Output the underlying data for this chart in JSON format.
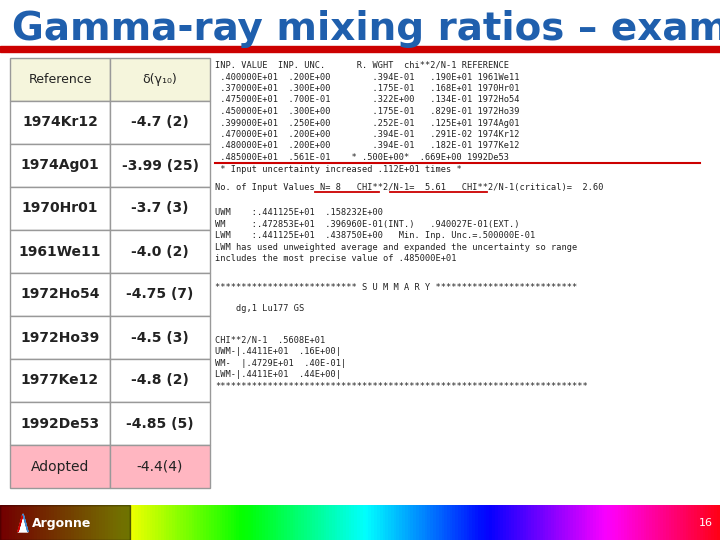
{
  "title": "Gamma-ray mixing ratios – example",
  "title_color": "#1F5FAD",
  "title_fontsize": 28,
  "background_color": "#FFFFFF",
  "red_bar_color": "#CC0000",
  "table_header_bg": "#F5F5DC",
  "table_adopted_bg": "#FFB6C1",
  "table_rows": [
    [
      "Reference",
      "δ(γ₁₀)"
    ],
    [
      "1974Kr12",
      "-4.7 (2)"
    ],
    [
      "1974Ag01",
      "-3.99 (25)"
    ],
    [
      "1970Hr01",
      "-3.7 (3)"
    ],
    [
      "1961We11",
      "-4.0 (2)"
    ],
    [
      "1972Ho54",
      "-4.75 (7)"
    ],
    [
      "1972Ho39",
      "-4.5 (3)"
    ],
    [
      "1977Ke12",
      "-4.8 (2)"
    ],
    [
      "1992De53",
      "-4.85 (5)"
    ],
    [
      "Adopted",
      "-4.4(4)"
    ]
  ],
  "computer_text_lines": [
    "INP. VALUE  INP. UNC.      R. WGHT  chi**2/N-1 REFERENCE",
    " .400000E+01  .200E+00        .394E-01   .190E+01 1961We11",
    " .370000E+01  .300E+00        .175E-01   .168E+01 1970Hr01",
    " .475000E+01  .700E-01        .322E+00   .134E-01 1972Ho54",
    " .450000E+01  .300E+00        .175E-01   .829E-01 1972Ho39",
    " .399000E+01  .250E+00        .252E-01   .125E+01 1974Ag01",
    " .470000E+01  .200E+00        .394E-01   .291E-02 1974Kr12",
    " .480000E+01  .200E+00        .394E-01   .182E-01 1977Ke12",
    " .485000E+01  .561E-01    * .500E+00*  .669E+00 1992De53"
  ],
  "highlight_line_index": 8,
  "note_line": " * Input uncertainty increased .112E+01 times *",
  "chi_line": "No. of Input Values N= 8   CHI**2/N-1=  5.61   CHI**2/N-1(critical)=  2.60",
  "stats_lines": [
    "UWM    :.441125E+01  .158232E+00",
    "WM     :.472853E+01  .396960E-01(INT.)   .940027E-01(EXT.)",
    "LWM    :.441125E+01  .438750E+00   Min. Inp. Unc.=.500000E-01",
    "LWM has used unweighted average and expanded the uncertainty so range",
    "includes the most precise value of .485000E+01"
  ],
  "summary_line": "*************************** S U M M A R Y ***************************",
  "dg_line": "    dg,1 Lu177 GS",
  "final_lines": [
    "CHI**2/N-1  .5608E+01",
    "UWM-|.4411E+01  .16E+00|",
    "WM-  |.4729E+01  .40E-01|",
    "LWM-|.4411E+01  .44E+00|",
    "***********************************************************************"
  ],
  "footer_page": "16",
  "argonne_text": "Argonne"
}
